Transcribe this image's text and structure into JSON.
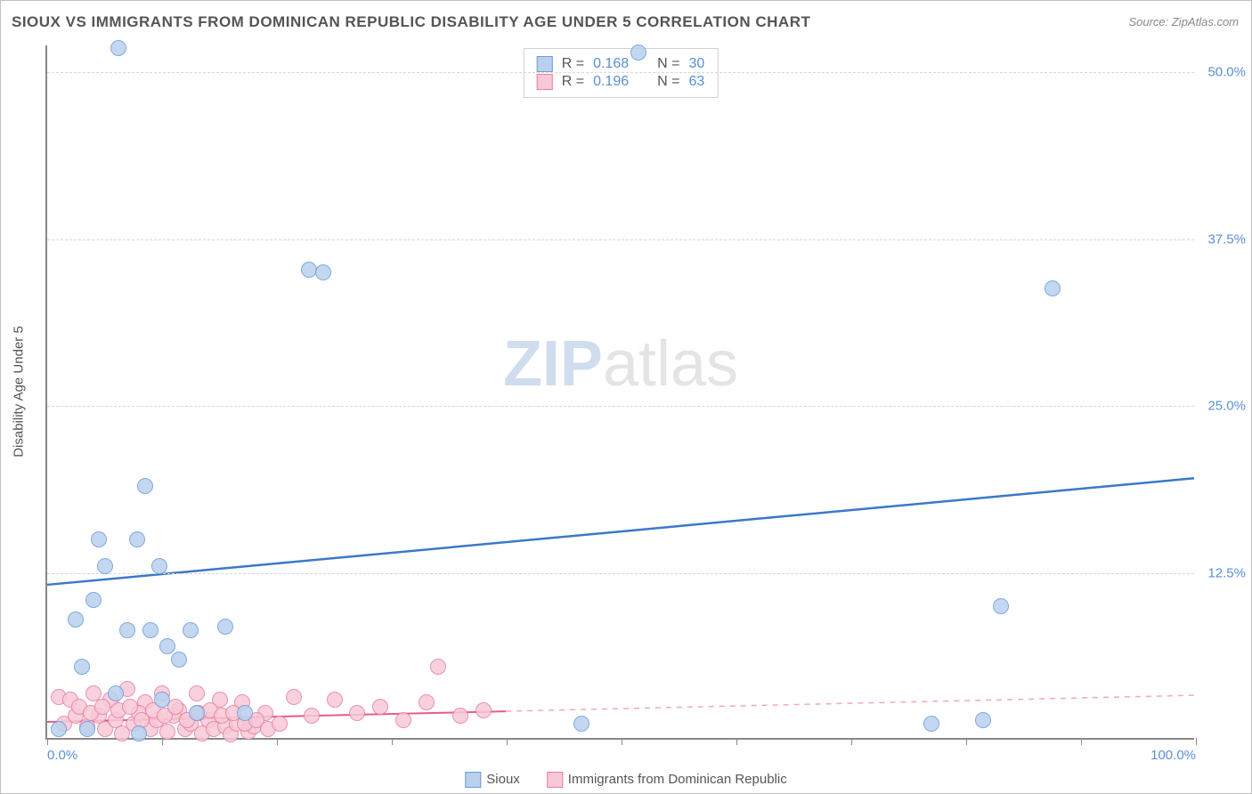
{
  "title": "SIOUX VS IMMIGRANTS FROM DOMINICAN REPUBLIC DISABILITY AGE UNDER 5 CORRELATION CHART",
  "source": "Source: ZipAtlas.com",
  "watermark": {
    "zip": "ZIP",
    "atlas": "atlas"
  },
  "yaxis_title": "Disability Age Under 5",
  "chart": {
    "type": "scatter",
    "background_color": "#ffffff",
    "grid_color": "#d8d8d8",
    "axis_color": "#888888",
    "label_color": "#5b8fd6",
    "text_color": "#555555",
    "xlim": [
      0,
      100
    ],
    "ylim": [
      0,
      52
    ],
    "xticks": [
      0,
      10,
      20,
      30,
      40,
      50,
      60,
      70,
      80,
      90,
      100
    ],
    "xtick_labels": {
      "0": "0.0%",
      "100": "100.0%"
    },
    "yticks": [
      12.5,
      25.0,
      37.5,
      50.0
    ],
    "ytick_labels": [
      "12.5%",
      "25.0%",
      "37.5%",
      "50.0%"
    ],
    "marker_radius": 9,
    "marker_stroke_width": 1.5,
    "trend_line_width_a": 2.5,
    "trend_line_width_b": 2
  },
  "series_a": {
    "name": "Sioux",
    "fill": "#b9d1ef",
    "stroke": "#6a9cd9",
    "line_color": "#3b78c9",
    "R": "0.168",
    "N": "30",
    "trend": {
      "x1": 0,
      "y1": 11.5,
      "x2": 100,
      "y2": 19.5
    },
    "points": [
      [
        6.2,
        51.8
      ],
      [
        51.5,
        51.5
      ],
      [
        22.8,
        35.2
      ],
      [
        24.0,
        35.0
      ],
      [
        87.5,
        33.8
      ],
      [
        8.5,
        19.0
      ],
      [
        4.5,
        15.0
      ],
      [
        7.8,
        15.0
      ],
      [
        5.0,
        13.0
      ],
      [
        9.8,
        13.0
      ],
      [
        4.0,
        10.5
      ],
      [
        2.5,
        9.0
      ],
      [
        7.0,
        8.2
      ],
      [
        9.0,
        8.2
      ],
      [
        12.5,
        8.2
      ],
      [
        15.5,
        8.5
      ],
      [
        10.5,
        7.0
      ],
      [
        11.5,
        6.0
      ],
      [
        3.0,
        5.5
      ],
      [
        6.0,
        3.5
      ],
      [
        10.0,
        3.0
      ],
      [
        13.0,
        2.0
      ],
      [
        17.2,
        2.0
      ],
      [
        46.5,
        1.2
      ],
      [
        77.0,
        1.2
      ],
      [
        81.5,
        1.5
      ],
      [
        83.0,
        10.0
      ],
      [
        1.0,
        0.8
      ],
      [
        3.5,
        0.8
      ],
      [
        8.0,
        0.5
      ]
    ]
  },
  "series_b": {
    "name": "Immigants from Dominican Republic",
    "label": "Immigrants from Dominican Republic",
    "fill": "#f7c9d7",
    "stroke": "#e77fa3",
    "line_color": "#e85b8b",
    "line_dash_color": "#f0a8bd",
    "R": "0.196",
    "N": "63",
    "trend_solid": {
      "x1": 0,
      "y1": 1.2,
      "x2": 40,
      "y2": 2.0
    },
    "trend_dash": {
      "x1": 40,
      "y1": 2.0,
      "x2": 100,
      "y2": 3.2
    },
    "points": [
      [
        34.0,
        5.5
      ],
      [
        1.0,
        3.2
      ],
      [
        2.0,
        3.0
      ],
      [
        4.0,
        3.5
      ],
      [
        5.5,
        3.0
      ],
      [
        7.0,
        3.8
      ],
      [
        8.5,
        2.8
      ],
      [
        10.0,
        3.5
      ],
      [
        11.5,
        2.2
      ],
      [
        13.0,
        3.5
      ],
      [
        15.0,
        3.0
      ],
      [
        17.0,
        2.8
      ],
      [
        19.0,
        2.0
      ],
      [
        21.5,
        3.2
      ],
      [
        23.0,
        1.8
      ],
      [
        25.0,
        3.0
      ],
      [
        27.0,
        2.0
      ],
      [
        29.0,
        2.5
      ],
      [
        31.0,
        1.5
      ],
      [
        33.0,
        2.8
      ],
      [
        36.0,
        1.8
      ],
      [
        38.0,
        2.2
      ],
      [
        1.5,
        1.2
      ],
      [
        2.5,
        1.8
      ],
      [
        3.5,
        1.0
      ],
      [
        4.5,
        1.8
      ],
      [
        5.0,
        0.8
      ],
      [
        6.0,
        1.5
      ],
      [
        6.5,
        0.5
      ],
      [
        7.5,
        1.2
      ],
      [
        8.0,
        2.0
      ],
      [
        9.0,
        0.8
      ],
      [
        9.5,
        1.5
      ],
      [
        10.5,
        0.6
      ],
      [
        11.0,
        1.8
      ],
      [
        12.0,
        0.8
      ],
      [
        12.5,
        1.2
      ],
      [
        13.5,
        0.5
      ],
      [
        14.0,
        1.5
      ],
      [
        14.5,
        0.8
      ],
      [
        15.5,
        1.0
      ],
      [
        16.0,
        0.4
      ],
      [
        16.5,
        1.2
      ],
      [
        17.5,
        0.6
      ],
      [
        18.0,
        1.0
      ],
      [
        2.8,
        2.5
      ],
      [
        3.8,
        2.0
      ],
      [
        4.8,
        2.5
      ],
      [
        6.2,
        2.2
      ],
      [
        7.2,
        2.5
      ],
      [
        8.2,
        1.5
      ],
      [
        9.2,
        2.2
      ],
      [
        10.2,
        1.8
      ],
      [
        11.2,
        2.5
      ],
      [
        12.2,
        1.5
      ],
      [
        13.2,
        2.0
      ],
      [
        14.2,
        2.2
      ],
      [
        15.2,
        1.8
      ],
      [
        16.2,
        2.0
      ],
      [
        17.2,
        1.2
      ],
      [
        18.2,
        1.5
      ],
      [
        19.2,
        0.8
      ],
      [
        20.2,
        1.2
      ]
    ]
  },
  "stat_legend": {
    "r_label": "R =",
    "n_label": "N ="
  },
  "bottom_legend": {
    "a": "Sioux",
    "b": "Immigrants from Dominican Republic"
  }
}
